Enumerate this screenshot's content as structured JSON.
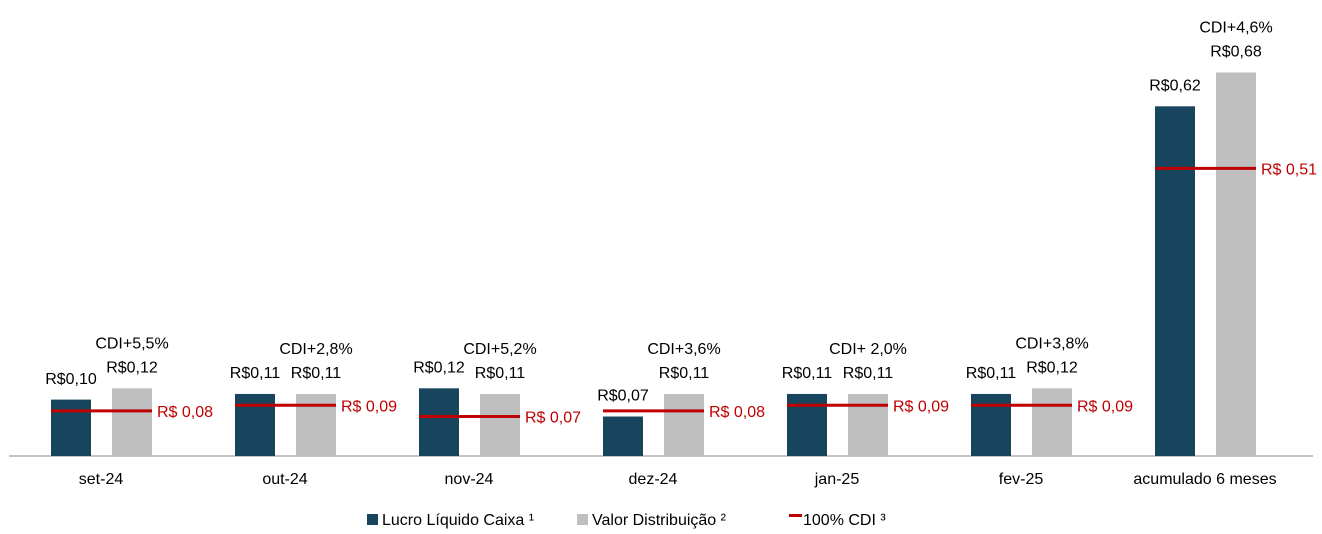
{
  "chart_data": {
    "type": "bar",
    "categories": [
      "set-24",
      "out-24",
      "nov-24",
      "dez-24",
      "jan-25",
      "fev-25",
      "acumulado 6 meses"
    ],
    "series": [
      {
        "name": "Lucro Líquido Caixa ¹",
        "color": "#17455e",
        "values": [
          0.1,
          0.11,
          0.12,
          0.07,
          0.11,
          0.11,
          0.62
        ],
        "value_labels": [
          "R$0,10",
          "R$0,11",
          "R$0,12",
          "R$0,07",
          "R$0,11",
          "R$0,11",
          "R$0,62"
        ]
      },
      {
        "name": "Valor Distribuição ²",
        "color": "#bfbfbf",
        "values": [
          0.12,
          0.11,
          0.11,
          0.11,
          0.11,
          0.12,
          0.68
        ],
        "value_labels": [
          "R$0,12",
          "R$0,11",
          "R$0,11",
          "R$0,11",
          "R$0,11",
          "R$0,12",
          "R$0,68"
        ],
        "annotations": [
          "CDI+5,5%",
          "CDI+2,8%",
          "CDI+5,2%",
          "CDI+3,6%",
          "CDI+ 2,0%",
          "CDI+3,8%",
          "CDI+4,6%"
        ]
      },
      {
        "name": "100% CDI ³",
        "color": "#c00000",
        "values": [
          0.08,
          0.09,
          0.07,
          0.08,
          0.09,
          0.09,
          0.51
        ],
        "value_labels": [
          "R$ 0,08",
          "R$ 0,09",
          "R$ 0,07",
          "R$ 0,08",
          "R$ 0,09",
          "R$ 0,09",
          "R$ 0,51"
        ]
      }
    ]
  }
}
